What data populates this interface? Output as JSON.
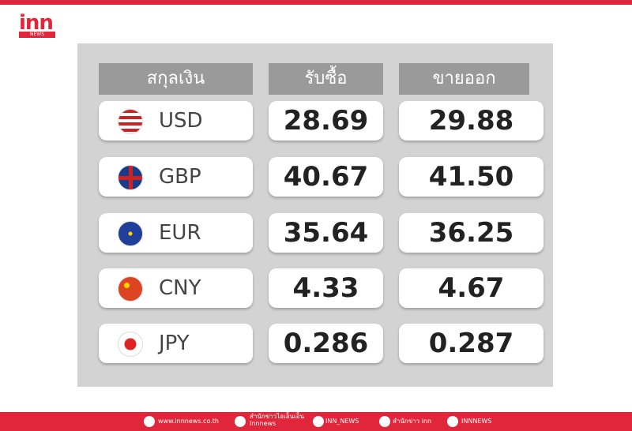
{
  "header": {
    "logo": "inn",
    "logo_sub": "NEWS"
  },
  "table": {
    "columns": [
      "สกุลเงิน",
      "รับซื้อ",
      "ขายออก"
    ],
    "rows": [
      [
        "USD",
        "28.69",
        "29.88"
      ],
      [
        "GBP",
        "40.67",
        "41.50"
      ],
      [
        "EUR",
        "35.64",
        "36.25"
      ],
      [
        "CNY",
        "4.33",
        "4.67"
      ],
      [
        "JPY",
        "0.286",
        "0.287"
      ]
    ]
  },
  "footer": {
    "items": [
      "www.innnews.co.th",
      "สำนักข่าวไอเอ็นเอ็น",
      "Innnews",
      "INN_NEWS",
      "สำนักข่าว inn",
      "INNNEWS"
    ]
  }
}
